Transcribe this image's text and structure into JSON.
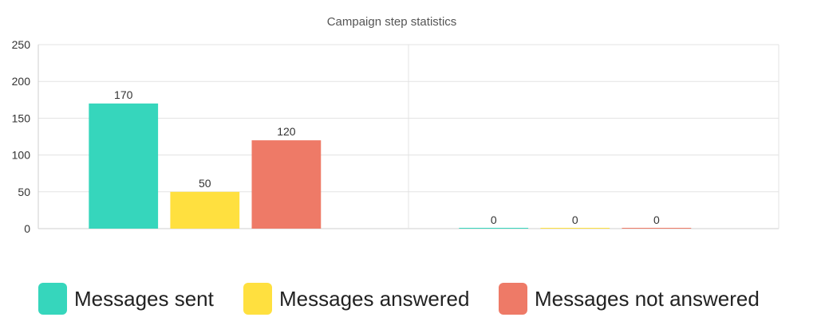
{
  "chart_data": {
    "type": "bar",
    "title": "Campaign step statistics",
    "xlabel": "",
    "ylabel": "",
    "ylim": [
      0,
      250
    ],
    "yticks": [
      0,
      50,
      100,
      150,
      200,
      250
    ],
    "grid": true,
    "legend_position": "bottom",
    "categories": [
      "",
      ""
    ],
    "series": [
      {
        "name": "Messages sent",
        "color": "#36D6BC",
        "values": [
          170,
          0
        ]
      },
      {
        "name": "Messages answered",
        "color": "#FFE03F",
        "values": [
          50,
          0
        ]
      },
      {
        "name": "Messages not answered",
        "color": "#EE7A67",
        "values": [
          120,
          0
        ]
      }
    ]
  }
}
